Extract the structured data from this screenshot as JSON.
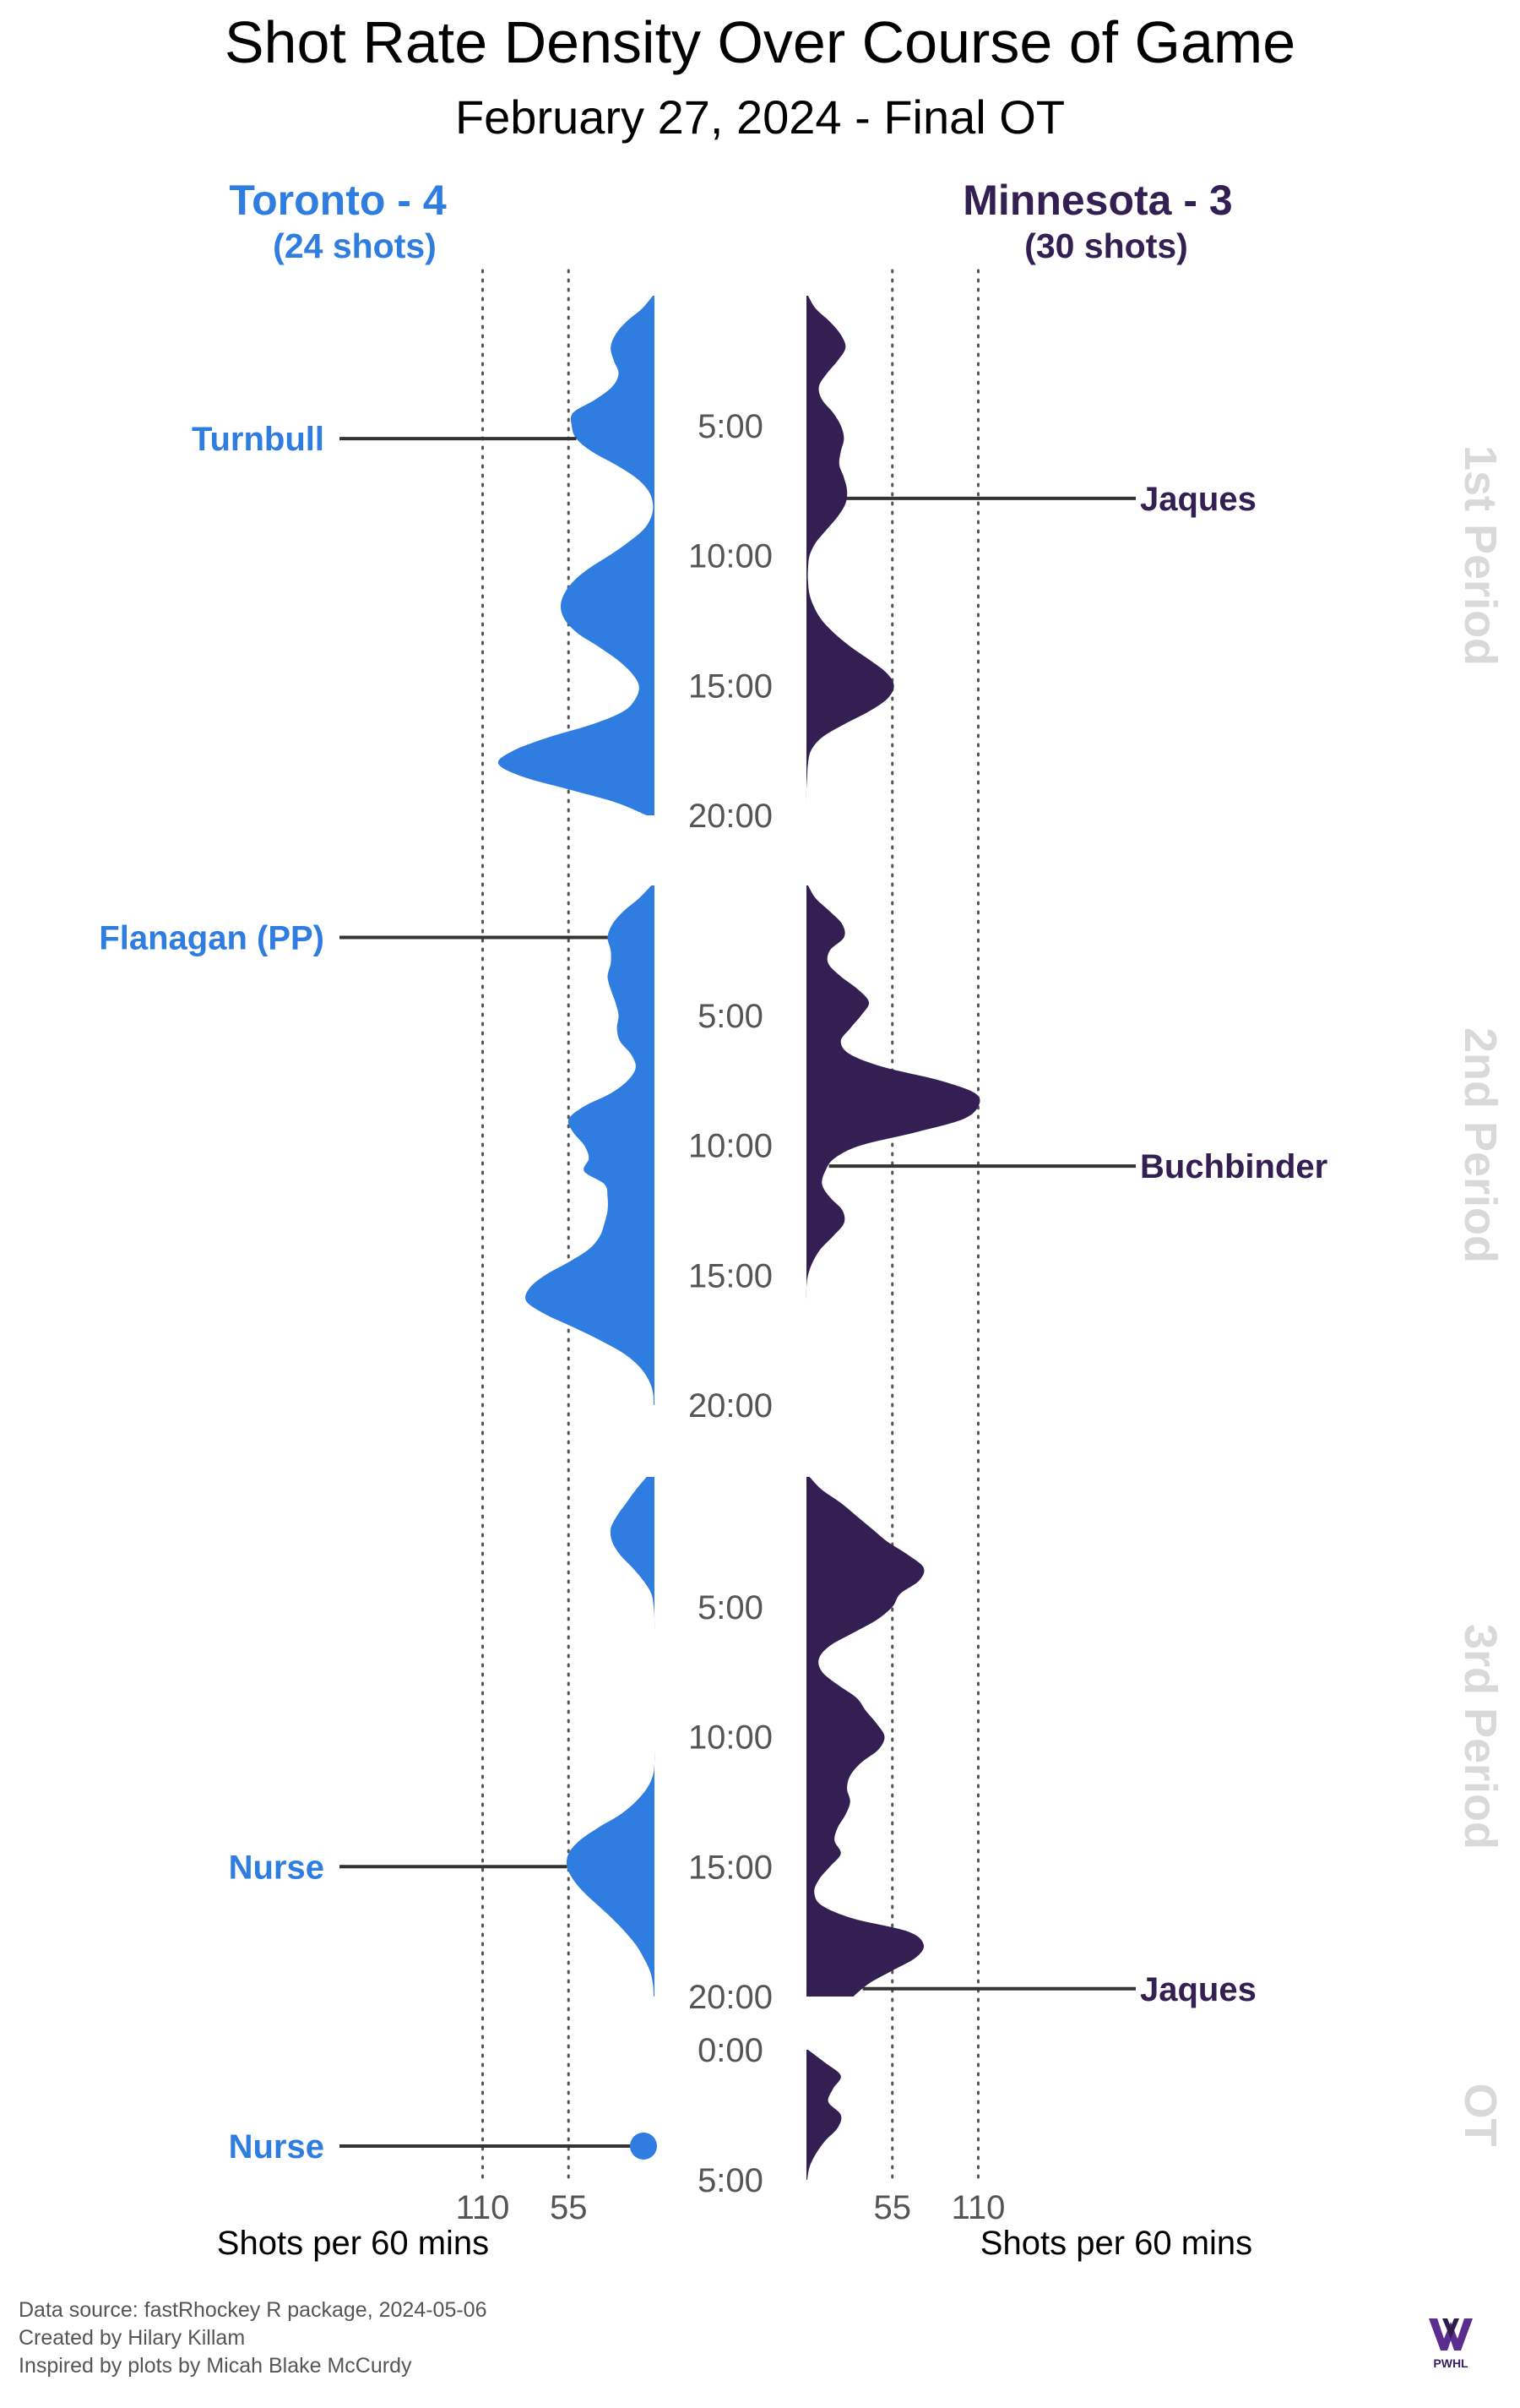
{
  "title": "Shot Rate Density Over Course of Game",
  "subtitle": "February 27, 2024 - Final OT",
  "teams": {
    "home": {
      "label": "Toronto - 4",
      "shots": "(24 shots)",
      "color": "#2f7de1"
    },
    "away": {
      "label": "Minnesota - 3",
      "shots": "(30 shots)",
      "color": "#331f52"
    }
  },
  "x_axis": {
    "title": "Shots per 60 mins",
    "home_ticks": [
      "110",
      "55"
    ],
    "away_ticks": [
      "55",
      "110"
    ]
  },
  "footer": {
    "source": "Data source: fastRhockey R package, 2024-05-06",
    "created": "Created by Hilary Killam",
    "inspired": "Inspired by plots by Micah Blake McCurdy"
  },
  "logo_text": "PWHL",
  "colors": {
    "period_label": "#d9d9d9",
    "goal_line": "#333333",
    "time_label": "#555555",
    "gridline": "#555555"
  },
  "chart_data": {
    "type": "area",
    "x_unit": "minutes into period",
    "y_unit": "Shots per 60 mins",
    "grid": "dotted vertical lines at 55 and 110",
    "periods": [
      {
        "label": "1st Period",
        "length": 20,
        "time_ticks": [
          "5:00",
          "10:00",
          "15:00",
          "20:00"
        ],
        "home": {
          "t": [
            0,
            0.5,
            1,
            1.5,
            2,
            2.5,
            3,
            3.5,
            4,
            4.5,
            5,
            5.5,
            6,
            6.5,
            7,
            7.5,
            8,
            8.5,
            9,
            9.5,
            10,
            10.5,
            11,
            11.5,
            12,
            12.5,
            13,
            13.5,
            14,
            14.5,
            15,
            15.5,
            16,
            16.5,
            17,
            17.5,
            18,
            18.5,
            19,
            19.5,
            20
          ],
          "v": [
            1,
            8,
            18,
            25,
            28,
            26,
            23,
            27,
            38,
            52,
            53,
            50,
            40,
            25,
            12,
            4,
            1,
            2,
            7,
            17,
            29,
            42,
            52,
            58,
            60,
            57,
            49,
            36,
            24,
            15,
            10,
            12,
            20,
            40,
            68,
            90,
            100,
            85,
            55,
            25,
            5
          ]
        },
        "away": {
          "t": [
            0,
            0.5,
            1,
            1.5,
            2,
            2.5,
            3,
            3.5,
            4,
            4.5,
            5,
            5.5,
            6,
            6.5,
            7,
            7.5,
            8,
            8.5,
            9,
            9.5,
            10,
            10.5,
            11,
            11.5,
            12,
            12.5,
            13,
            13.5,
            14,
            14.5,
            15,
            15.5,
            16,
            16.5,
            17,
            17.5,
            18,
            18.5,
            19,
            19.5,
            20
          ],
          "v": [
            1,
            6,
            15,
            22,
            25,
            20,
            13,
            8,
            10,
            17,
            22,
            24,
            22,
            21,
            24,
            26,
            25,
            20,
            13,
            6,
            2,
            1,
            1,
            2,
            5,
            10,
            18,
            28,
            40,
            51,
            56,
            52,
            40,
            24,
            10,
            3,
            1,
            0.5,
            0,
            0,
            0
          ]
        },
        "goals": [
          {
            "team": "home",
            "player": "Turnbull",
            "time": 5.5
          },
          {
            "team": "away",
            "player": "Jaques",
            "time": 7.8
          }
        ]
      },
      {
        "label": "2nd Period",
        "length": 20,
        "time_ticks": [
          "5:00",
          "10:00",
          "15:00",
          "20:00"
        ],
        "home": {
          "t": [
            0,
            0.5,
            1,
            1.5,
            2,
            2.5,
            3,
            3.5,
            4,
            4.5,
            5,
            5.5,
            6,
            6.5,
            7,
            7.5,
            8,
            8.5,
            9,
            9.5,
            10,
            10.5,
            11,
            11.5,
            12,
            12.5,
            13,
            13.5,
            14,
            14.5,
            15,
            15.5,
            16,
            16.5,
            17,
            17.5,
            18,
            18.5,
            19,
            19.5,
            20
          ],
          "v": [
            2,
            10,
            20,
            27,
            30,
            28,
            28,
            30,
            28,
            25,
            23,
            24,
            22,
            15,
            12,
            17,
            28,
            45,
            55,
            52,
            45,
            42,
            45,
            32,
            30,
            30,
            32,
            35,
            42,
            55,
            70,
            80,
            82,
            70,
            52,
            35,
            20,
            10,
            4,
            1,
            0.5
          ]
        },
        "away": {
          "t": [
            0,
            0.5,
            1,
            1.5,
            2,
            2.5,
            3,
            3.5,
            4,
            4.5,
            5,
            5.5,
            6,
            6.5,
            7,
            7.5,
            8,
            8.5,
            9,
            9.5,
            10,
            10.5,
            11,
            11.5,
            12,
            12.5,
            13,
            13.5,
            14,
            14.5,
            15,
            15.5,
            16,
            16.5,
            17,
            17.5,
            18,
            18.5,
            19,
            19.5,
            20
          ],
          "v": [
            1,
            6,
            15,
            23,
            24,
            15,
            14,
            22,
            33,
            40,
            35,
            28,
            22,
            28,
            50,
            85,
            108,
            110,
            100,
            70,
            35,
            18,
            12,
            10,
            15,
            23,
            24,
            17,
            9,
            4,
            1,
            0,
            0,
            0,
            0,
            0,
            0,
            0,
            0,
            0,
            0
          ]
        },
        "goals": [
          {
            "team": "home",
            "player": "Flanagan (PP)",
            "time": 2.0
          },
          {
            "team": "away",
            "player": "Buchbinder",
            "time": 10.8
          }
        ]
      },
      {
        "label": "3rd Period",
        "length": 20,
        "time_ticks": [
          "5:00",
          "10:00",
          "15:00",
          "20:00"
        ],
        "home": {
          "t": [
            0,
            0.5,
            1,
            1.5,
            2,
            2.5,
            3,
            3.5,
            4,
            4.5,
            5,
            5.5,
            6,
            6.5,
            7,
            7.5,
            8,
            8.5,
            9,
            9.5,
            10,
            10.5,
            11,
            11.5,
            12,
            12.5,
            13,
            13.5,
            14,
            14.5,
            15,
            15.5,
            16,
            16.5,
            17,
            17.5,
            18,
            18.5,
            19,
            19.5,
            20
          ],
          "v": [
            5,
            12,
            18,
            24,
            28,
            27,
            22,
            14,
            7,
            2,
            0.5,
            0,
            0,
            0,
            0,
            0,
            0,
            0,
            0,
            0,
            0,
            0,
            0,
            1,
            5,
            12,
            22,
            36,
            48,
            55,
            56,
            52,
            45,
            36,
            27,
            19,
            12,
            7,
            3,
            1,
            0.5
          ]
        },
        "away": {
          "t": [
            0,
            0.5,
            1,
            1.5,
            2,
            2.5,
            3,
            3.5,
            4,
            4.5,
            5,
            5.5,
            6,
            6.5,
            7,
            7.5,
            8,
            8.5,
            9,
            9.5,
            10,
            10.5,
            11,
            11.5,
            12,
            12.5,
            13,
            13.5,
            14,
            14.5,
            15,
            15.5,
            16,
            16.5,
            17,
            17.5,
            18,
            18.5,
            19,
            19.5,
            20
          ],
          "v": [
            2,
            10,
            22,
            32,
            42,
            52,
            65,
            75,
            72,
            60,
            55,
            45,
            30,
            15,
            8,
            10,
            20,
            32,
            38,
            45,
            50,
            46,
            35,
            28,
            26,
            28,
            25,
            20,
            18,
            22,
            15,
            8,
            5,
            10,
            30,
            65,
            75,
            70,
            55,
            40,
            30
          ]
        },
        "goals": [
          {
            "team": "home",
            "player": "Nurse",
            "time": 15.0
          },
          {
            "team": "away",
            "player": "Jaques",
            "time": 19.7
          }
        ]
      },
      {
        "label": "OT",
        "length": 5,
        "time_ticks": [
          "0:00",
          "5:00"
        ],
        "home": {
          "t": [],
          "v": []
        },
        "away": {
          "t": [
            0,
            0.5,
            1,
            1.5,
            2,
            2.5,
            3,
            3.5,
            4,
            4.5,
            5
          ],
          "v": [
            1,
            12,
            22,
            17,
            14,
            22,
            20,
            12,
            6,
            2,
            0.5
          ]
        },
        "goals": [
          {
            "team": "home",
            "player": "Nurse",
            "time": 3.7,
            "point": true
          }
        ]
      }
    ]
  }
}
